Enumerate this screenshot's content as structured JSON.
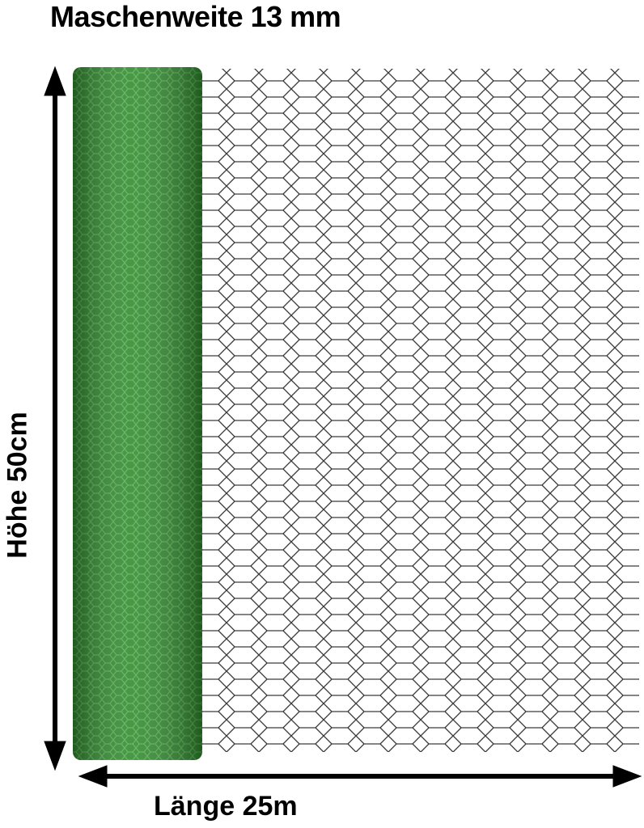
{
  "title": "Maschenweite 13 mm",
  "height_label": "Höhe 50cm",
  "length_label": "Länge 25m",
  "colors": {
    "roll": "#2f8a2f",
    "wire": "#333333",
    "arrow": "#000000"
  },
  "icons": {
    "vertical_arrow": "double-arrow-vertical",
    "horizontal_arrow": "double-arrow-horizontal"
  }
}
